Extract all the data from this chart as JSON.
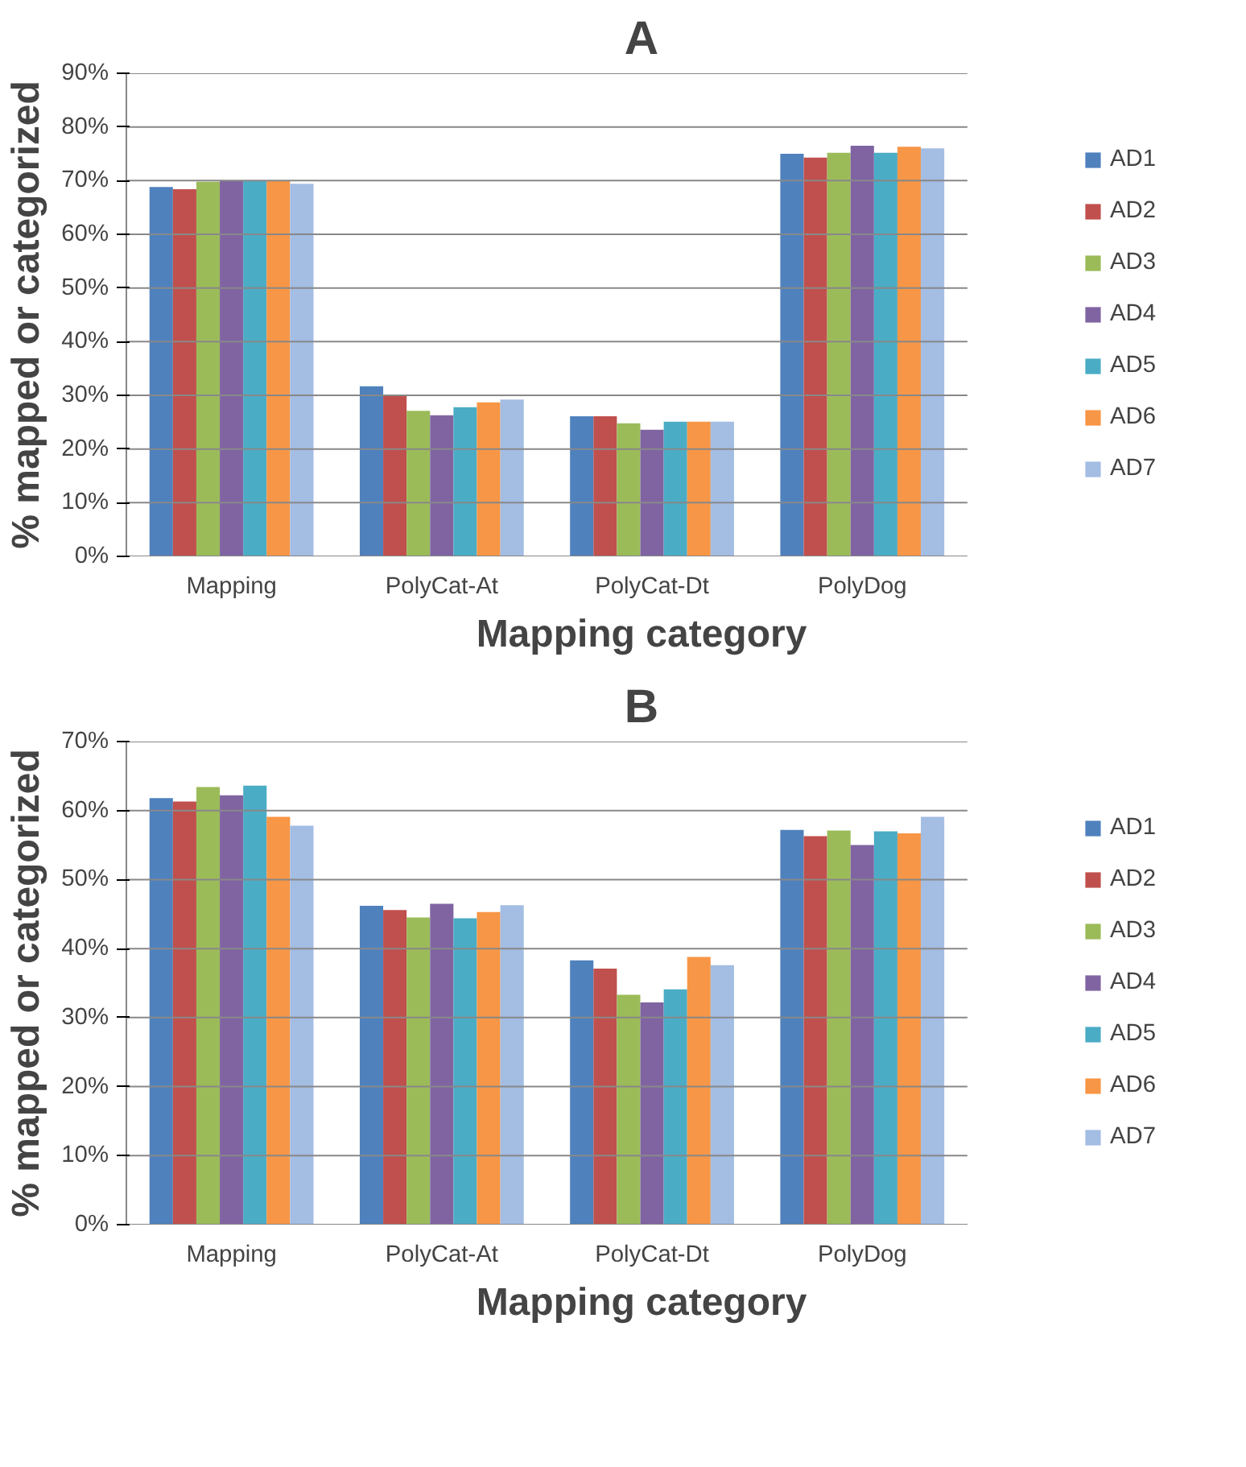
{
  "chart_data": [
    {
      "type": "bar",
      "title": "A",
      "xlabel": "Mapping category",
      "ylabel": "% mapped or categorized",
      "categories": [
        "Mapping",
        "PolyCat-At",
        "PolyCat-Dt",
        "PolyDog"
      ],
      "series": [
        {
          "name": "AD1",
          "color": "#4f81bd",
          "values": [
            68.8,
            31.7,
            26.1,
            75.0
          ]
        },
        {
          "name": "AD2",
          "color": "#c0504d",
          "values": [
            68.4,
            30.1,
            26.1,
            74.3
          ]
        },
        {
          "name": "AD3",
          "color": "#9bbb59",
          "values": [
            69.8,
            27.1,
            24.8,
            75.2
          ]
        },
        {
          "name": "AD4",
          "color": "#8064a2",
          "values": [
            69.9,
            26.3,
            23.6,
            76.5
          ]
        },
        {
          "name": "AD5",
          "color": "#4bacc6",
          "values": [
            69.9,
            27.8,
            25.1,
            75.2
          ]
        },
        {
          "name": "AD6",
          "color": "#f79646",
          "values": [
            69.9,
            28.7,
            25.1,
            76.3
          ]
        },
        {
          "name": "AD7",
          "color": "#a3bde3",
          "values": [
            69.4,
            29.2,
            25.1,
            76.0
          ]
        }
      ],
      "ylim": [
        0,
        90
      ],
      "yticks": [
        {
          "value": 0,
          "label": "0%"
        },
        {
          "value": 10,
          "label": "10%"
        },
        {
          "value": 20,
          "label": "20%"
        },
        {
          "value": 30,
          "label": "30%"
        },
        {
          "value": 40,
          "label": "40%"
        },
        {
          "value": 50,
          "label": "50%"
        },
        {
          "value": 60,
          "label": "60%"
        },
        {
          "value": 70,
          "label": "70%"
        },
        {
          "value": 80,
          "label": "80%"
        },
        {
          "value": 90,
          "label": "90%"
        }
      ],
      "grid": "y",
      "legend": "right"
    },
    {
      "type": "bar",
      "title": "B",
      "xlabel": "Mapping category",
      "ylabel": "% mapped or categorized",
      "categories": [
        "Mapping",
        "PolyCat-At",
        "PolyCat-Dt",
        "PolyDog"
      ],
      "series": [
        {
          "name": "AD1",
          "color": "#4f81bd",
          "values": [
            61.8,
            46.2,
            38.3,
            57.2
          ]
        },
        {
          "name": "AD2",
          "color": "#c0504d",
          "values": [
            61.3,
            45.6,
            37.1,
            56.3
          ]
        },
        {
          "name": "AD3",
          "color": "#9bbb59",
          "values": [
            63.4,
            44.5,
            33.3,
            57.1
          ]
        },
        {
          "name": "AD4",
          "color": "#8064a2",
          "values": [
            62.2,
            46.5,
            32.2,
            55.0
          ]
        },
        {
          "name": "AD5",
          "color": "#4bacc6",
          "values": [
            63.6,
            44.4,
            34.1,
            57.0
          ]
        },
        {
          "name": "AD6",
          "color": "#f79646",
          "values": [
            59.1,
            45.3,
            38.8,
            56.7
          ]
        },
        {
          "name": "AD7",
          "color": "#a3bde3",
          "values": [
            57.8,
            46.3,
            37.6,
            59.1
          ]
        }
      ],
      "ylim": [
        0,
        70
      ],
      "yticks": [
        {
          "value": 0,
          "label": "0%"
        },
        {
          "value": 10,
          "label": "10%"
        },
        {
          "value": 20,
          "label": "20%"
        },
        {
          "value": 30,
          "label": "30%"
        },
        {
          "value": 40,
          "label": "40%"
        },
        {
          "value": 50,
          "label": "50%"
        },
        {
          "value": 60,
          "label": "60%"
        },
        {
          "value": 70,
          "label": "70%"
        }
      ],
      "grid": "y",
      "legend": "right"
    }
  ]
}
